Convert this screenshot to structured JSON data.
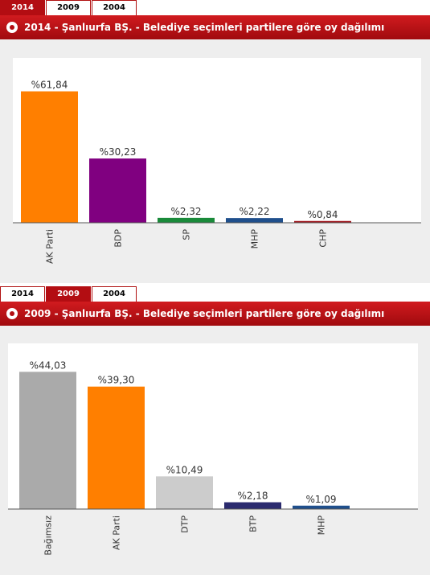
{
  "tabs": [
    "2014",
    "2009",
    "2004"
  ],
  "chart_data": [
    {
      "type": "bar",
      "title": "2014 - Şanlıurfa BŞ. - Belediye seçimleri partilere göre oy dağılımı",
      "active_tab": 0,
      "categories": [
        "AK Parti",
        "BDP",
        "SP",
        "MHP",
        "CHP"
      ],
      "values": [
        61.84,
        30.23,
        2.32,
        2.22,
        0.84
      ],
      "value_labels": [
        "%61,84",
        "%30,23",
        "%2,32",
        "%2,22",
        "%0,84"
      ],
      "colors": [
        "#ff7f00",
        "#800080",
        "#1a8a3a",
        "#1f4f8c",
        "#a01820"
      ],
      "ylim": [
        0,
        70
      ],
      "xlabel": "",
      "ylabel": "",
      "grid": false,
      "legend": "none"
    },
    {
      "type": "bar",
      "title": "2009 - Şanlıurfa BŞ. - Belediye seçimleri partilere göre oy dağılımı",
      "active_tab": 1,
      "categories": [
        "Bağımsız",
        "AK Parti",
        "DTP",
        "BTP",
        "MHP"
      ],
      "values": [
        44.03,
        39.3,
        10.49,
        2.18,
        1.09
      ],
      "value_labels": [
        "%44,03",
        "%39,30",
        "%10,49",
        "%2,18",
        "%1,09"
      ],
      "colors": [
        "#aaaaaa",
        "#ff7f00",
        "#cccccc",
        "#2a2a6e",
        "#1f4f8c"
      ],
      "ylim": [
        0,
        48
      ],
      "xlabel": "",
      "ylabel": "",
      "grid": false,
      "legend": "none"
    }
  ]
}
